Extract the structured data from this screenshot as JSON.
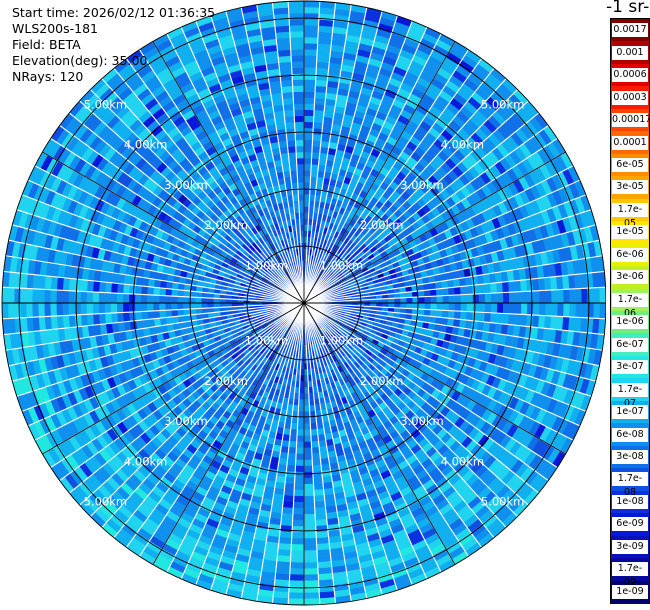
{
  "header": {
    "start_time": "Start time: 2026/02/12 01:36:35",
    "instrument": "WLS200s-181",
    "field": "Field: BETA",
    "elevation": "Elevation(deg): 35.00",
    "nrays": "NRays: 120"
  },
  "colorbar": {
    "title": "-1 sr-",
    "labels": [
      "0.0017",
      "0.001",
      "0.0006",
      "0.0003",
      "0.00017",
      "0.0001",
      "6e-05",
      "3e-05",
      "1.7e-05",
      "1e-05",
      "6e-06",
      "3e-06",
      "1.7e-06",
      "1e-06",
      "6e-07",
      "3e-07",
      "1.7e-07",
      "1e-07",
      "6e-08",
      "3e-08",
      "1.7e-08",
      "1e-08",
      "6e-09",
      "3e-09",
      "1.7e-09",
      "1e-09"
    ],
    "colors": [
      "#800000",
      "#b00000",
      "#e00000",
      "#ff1a00",
      "#ff4400",
      "#ff6a00",
      "#ff8c00",
      "#ffa500",
      "#ffc800",
      "#ffe600",
      "#e8f000",
      "#c0f020",
      "#a0f060",
      "#70ee80",
      "#40eec0",
      "#20e8e0",
      "#20d4f0",
      "#10b0f0",
      "#1090ee",
      "#1070e8",
      "#1050e0",
      "#0a30e0",
      "#0818d8",
      "#0810b8",
      "#050898",
      "#02016e"
    ]
  },
  "chart_data": {
    "type": "heatmap",
    "projection": "polar PPI",
    "field": "BETA",
    "elevation_deg": 35.0,
    "n_rays": 120,
    "range_rings_km": [
      "1.00km",
      "2.00km",
      "3.00km",
      "4.00km",
      "5.00km"
    ],
    "max_range_km": 5.3,
    "azimuth_spokes_deg": [
      0,
      30,
      60,
      90,
      120,
      150,
      180,
      210,
      240,
      270,
      300,
      330
    ],
    "value_scale": "log",
    "value_range": [
      1e-09,
      0.0017
    ],
    "dominant_value_range": [
      3e-08,
      1.7e-07
    ],
    "grid": true,
    "legend_position": "right"
  }
}
